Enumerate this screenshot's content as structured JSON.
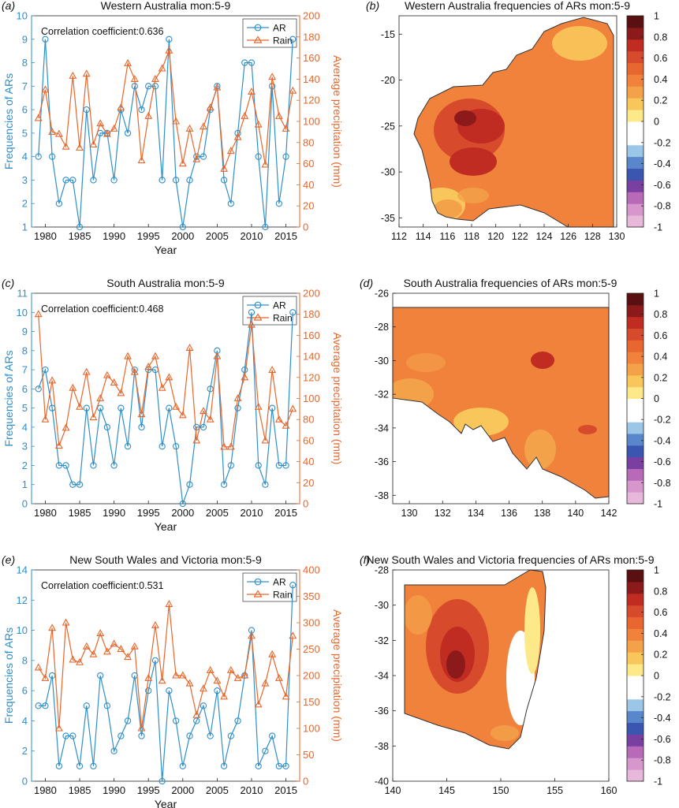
{
  "colors": {
    "ar": "#2f8fc8",
    "rain": "#e8662a",
    "axis": "#222222"
  },
  "colorbar": {
    "ticks": [
      "1",
      "0.8",
      "0.6",
      "0.4",
      "0.2",
      "0",
      "-0.2",
      "-0.4",
      "-0.6",
      "-0.8",
      "-1"
    ],
    "colors": [
      "#e8b8da",
      "#d796cc",
      "#b86ab8",
      "#7a3fa0",
      "#3a56b0",
      "#5a86cc",
      "#9cc6e8",
      "#ffffff",
      "#ffffff",
      "#fde98a",
      "#f8c65a",
      "#f3a24a",
      "#f0823c",
      "#e86630",
      "#d84a2c",
      "#c02c22",
      "#8c1a1a",
      "#5a1010"
    ]
  },
  "chart_data": [
    {
      "type": "line",
      "panel_tag": "(a)",
      "title": "Western Australia  mon:5-9",
      "annotation": "Correlation coefficient:0.636",
      "xlabel": "Year",
      "ylabel": "Frequencies of ARs",
      "ylabel_right": "Average precipitation (mm)",
      "xlim": [
        1978,
        2017
      ],
      "ylim": [
        1,
        10
      ],
      "ylim_right": [
        0,
        200
      ],
      "xticks": [
        1980,
        1985,
        1990,
        1995,
        2000,
        2005,
        2010,
        2015
      ],
      "yticks": [
        1,
        2,
        3,
        4,
        5,
        6,
        7,
        8,
        9,
        10
      ],
      "yticks_right": [
        0,
        20,
        40,
        60,
        80,
        100,
        120,
        140,
        160,
        180,
        200
      ],
      "legend": [
        "AR",
        "Rain"
      ],
      "legend_position": "top-right",
      "x": [
        1979,
        1980,
        1981,
        1982,
        1983,
        1984,
        1985,
        1986,
        1987,
        1988,
        1989,
        1990,
        1991,
        1992,
        1993,
        1994,
        1995,
        1996,
        1997,
        1998,
        1999,
        2000,
        2001,
        2002,
        2003,
        2004,
        2005,
        2006,
        2007,
        2008,
        2009,
        2010,
        2011,
        2012,
        2013,
        2014,
        2015,
        2016
      ],
      "series": [
        {
          "name": "AR",
          "axis": "left",
          "values": [
            4,
            9,
            4,
            2,
            3,
            3,
            1,
            6,
            3,
            5,
            5,
            3,
            6,
            5,
            7,
            6,
            7,
            7,
            3,
            9,
            3,
            1,
            3,
            4,
            4,
            6,
            7,
            3,
            2,
            5,
            8,
            8,
            4,
            1,
            7,
            2,
            4,
            9
          ]
        },
        {
          "name": "Rain",
          "axis": "right",
          "values": [
            103,
            130,
            90,
            88,
            76,
            143,
            75,
            145,
            78,
            98,
            88,
            93,
            113,
            155,
            140,
            63,
            105,
            140,
            150,
            167,
            100,
            60,
            93,
            64,
            95,
            113,
            132,
            55,
            72,
            85,
            105,
            128,
            97,
            59,
            142,
            105,
            93,
            129
          ]
        }
      ]
    },
    {
      "type": "heatmap",
      "panel_tag": "(b)",
      "title": "Western Australia frequencies of ARs  mon:5-9",
      "xlim": [
        112,
        130
      ],
      "ylim": [
        -36,
        -13
      ],
      "xticks": [
        "112",
        "114",
        "116",
        "118",
        "120",
        "122",
        "124",
        "126",
        "128",
        "130"
      ],
      "yticks": [
        "-15",
        "-20",
        "-25",
        "-30",
        "-35"
      ],
      "colorbar_range": [
        -1,
        1
      ]
    },
    {
      "type": "line",
      "panel_tag": "(c)",
      "title": "South Australia  mon:5-9",
      "annotation": "Correlation coefficient:0.468",
      "xlabel": "Year",
      "ylabel": "Frequencies of ARs",
      "ylabel_right": "Average precipitation (mm)",
      "xlim": [
        1978,
        2017
      ],
      "ylim": [
        0,
        11
      ],
      "ylim_right": [
        0,
        200
      ],
      "xticks": [
        1980,
        1985,
        1990,
        1995,
        2000,
        2005,
        2010,
        2015
      ],
      "yticks": [
        0,
        1,
        2,
        3,
        4,
        5,
        6,
        7,
        8,
        9,
        10,
        11
      ],
      "yticks_right": [
        0,
        20,
        40,
        60,
        80,
        100,
        120,
        140,
        160,
        180,
        200
      ],
      "legend": [
        "AR",
        "Rain"
      ],
      "legend_position": "top-right",
      "x": [
        1979,
        1980,
        1981,
        1982,
        1983,
        1984,
        1985,
        1986,
        1987,
        1988,
        1989,
        1990,
        1991,
        1992,
        1993,
        1994,
        1995,
        1996,
        1997,
        1998,
        1999,
        2000,
        2001,
        2002,
        2003,
        2004,
        2005,
        2006,
        2007,
        2008,
        2009,
        2010,
        2011,
        2012,
        2013,
        2014,
        2015,
        2016
      ],
      "series": [
        {
          "name": "AR",
          "axis": "left",
          "values": [
            6,
            7,
            5,
            2,
            2,
            1,
            1,
            5,
            2,
            5,
            4,
            2,
            5,
            3,
            7,
            4,
            7,
            7,
            3,
            5,
            3,
            0,
            1,
            4,
            4,
            6,
            8,
            1,
            2,
            5,
            7,
            10,
            2,
            1,
            5,
            2,
            2,
            10
          ]
        },
        {
          "name": "Rain",
          "axis": "right",
          "values": [
            180,
            80,
            117,
            55,
            72,
            110,
            92,
            125,
            82,
            100,
            122,
            115,
            105,
            140,
            125,
            85,
            130,
            140,
            110,
            120,
            92,
            84,
            148,
            60,
            88,
            80,
            140,
            54,
            54,
            100,
            120,
            170,
            92,
            60,
            127,
            80,
            74,
            90
          ]
        }
      ]
    },
    {
      "type": "heatmap",
      "panel_tag": "(d)",
      "title": "South Australia frequencies of ARs  mon:5-9",
      "xlim": [
        129,
        142
      ],
      "ylim": [
        -38.5,
        -26
      ],
      "xticks": [
        "130",
        "132",
        "134",
        "136",
        "138",
        "140",
        "142"
      ],
      "yticks": [
        "-26",
        "-28",
        "-30",
        "-32",
        "-34",
        "-36",
        "-38"
      ],
      "colorbar_range": [
        -1,
        1
      ]
    },
    {
      "type": "line",
      "panel_tag": "(e)",
      "title": "New South Wales and Victoria  mon:5-9",
      "annotation": "Correlation coefficient:0.531",
      "xlabel": "Year",
      "ylabel": "Frequencies of ARs",
      "ylabel_right": "Average precipitation (mm)",
      "xlim": [
        1978,
        2017
      ],
      "ylim": [
        0,
        14
      ],
      "ylim_right": [
        0,
        400
      ],
      "xticks": [
        1980,
        1985,
        1990,
        1995,
        2000,
        2005,
        2010,
        2015
      ],
      "yticks": [
        0,
        2,
        4,
        6,
        8,
        10,
        12,
        14
      ],
      "yticks_right": [
        0,
        50,
        100,
        150,
        200,
        250,
        300,
        350,
        400
      ],
      "legend": [
        "AR",
        "Rain"
      ],
      "legend_position": "top-right",
      "x": [
        1979,
        1980,
        1981,
        1982,
        1983,
        1984,
        1985,
        1986,
        1987,
        1988,
        1989,
        1990,
        1991,
        1992,
        1993,
        1994,
        1995,
        1996,
        1997,
        1998,
        1999,
        2000,
        2001,
        2002,
        2003,
        2004,
        2005,
        2006,
        2007,
        2008,
        2009,
        2010,
        2011,
        2012,
        2013,
        2014,
        2015,
        2016
      ],
      "series": [
        {
          "name": "AR",
          "axis": "left",
          "values": [
            5,
            5,
            7,
            1,
            3,
            3,
            1,
            5,
            1,
            7,
            5,
            2,
            3,
            4,
            7,
            3,
            6,
            8,
            0,
            6,
            4,
            1,
            3,
            4,
            5,
            3,
            6,
            1,
            3,
            4,
            7,
            10,
            1,
            2,
            3,
            1,
            1,
            13
          ]
        },
        {
          "name": "Rain",
          "axis": "right",
          "values": [
            215,
            195,
            290,
            100,
            300,
            230,
            225,
            255,
            240,
            280,
            245,
            260,
            250,
            235,
            255,
            100,
            195,
            295,
            190,
            335,
            200,
            200,
            185,
            125,
            175,
            210,
            190,
            160,
            210,
            195,
            200,
            275,
            145,
            185,
            240,
            195,
            160,
            275
          ]
        }
      ]
    },
    {
      "type": "heatmap",
      "panel_tag": "(f)",
      "title": "New South Wales and Victoria frequencies of ARs  mon:5-9",
      "xlim": [
        140,
        160
      ],
      "ylim": [
        -40,
        -28
      ],
      "xticks": [
        "140",
        "145",
        "150",
        "155",
        "160"
      ],
      "yticks": [
        "-28",
        "-30",
        "-32",
        "-34",
        "-36",
        "-38",
        "-40"
      ],
      "colorbar_range": [
        -1,
        1
      ]
    }
  ]
}
